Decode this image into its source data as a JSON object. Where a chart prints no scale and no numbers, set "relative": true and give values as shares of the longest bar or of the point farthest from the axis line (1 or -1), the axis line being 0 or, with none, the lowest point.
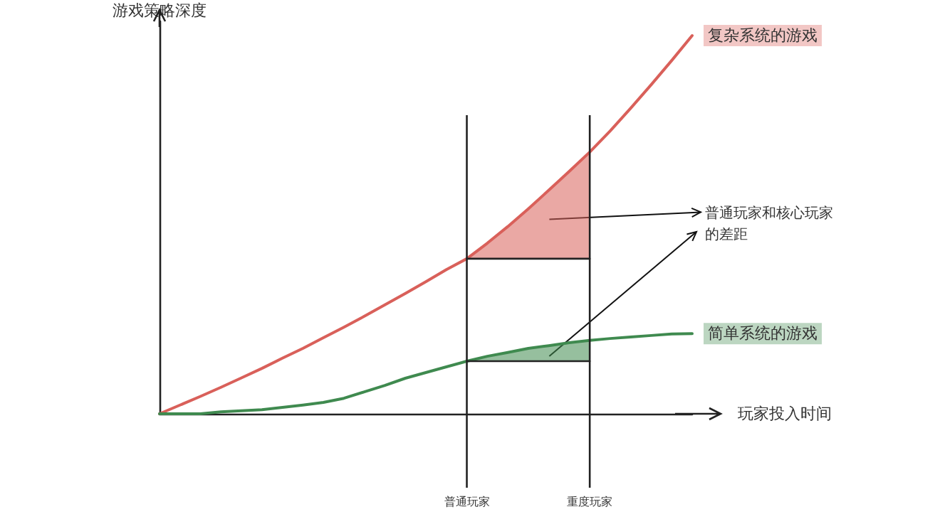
{
  "chart_data": {
    "type": "line",
    "relative": true,
    "xlabel": "玩家投入时间",
    "ylabel": "游戏策略深度",
    "categories": [
      null,
      null,
      null,
      null,
      null,
      null,
      null,
      null,
      null,
      null,
      null,
      null,
      null,
      null,
      null,
      "普通玩家",
      null,
      null,
      null,
      null,
      null,
      "重度玩家",
      null,
      null,
      null,
      null,
      null
    ],
    "series": [
      {
        "name": "复杂系统的游戏",
        "color": "#d9605a",
        "values": [
          0,
          0.023,
          0.046,
          0.07,
          0.095,
          0.12,
          0.147,
          0.173,
          0.201,
          0.229,
          0.258,
          0.288,
          0.318,
          0.349,
          0.381,
          0.41,
          0.451,
          0.495,
          0.542,
          0.591,
          0.641,
          0.692,
          0.748,
          0.808,
          0.87,
          0.934,
          1
        ],
        "lower": [
          null,
          null,
          null,
          null,
          null,
          null,
          null,
          null,
          null,
          null,
          null,
          null,
          null,
          null,
          null,
          0.41,
          0.41,
          0.41,
          0.41,
          0.41,
          0.41,
          0.41,
          null,
          null,
          null,
          null,
          null
        ],
        "upper": [
          null,
          null,
          null,
          null,
          null,
          null,
          null,
          null,
          null,
          null,
          null,
          null,
          null,
          null,
          null,
          0.41,
          0.451,
          0.495,
          0.542,
          0.591,
          0.641,
          0.692,
          null,
          null,
          null,
          null,
          null
        ]
      },
      {
        "name": "简单系统的游戏",
        "color": "#3f8a4f",
        "values": [
          0,
          0,
          0,
          0.005,
          0.008,
          0.011,
          0.017,
          0.023,
          0.03,
          0.041,
          0.058,
          0.075,
          0.094,
          0.109,
          0.124,
          0.139,
          0.152,
          0.162,
          0.173,
          0.18,
          0.188,
          0.194,
          0.199,
          0.203,
          0.207,
          0.211,
          0.212
        ],
        "lower": [
          null,
          null,
          null,
          null,
          null,
          null,
          null,
          null,
          null,
          null,
          null,
          null,
          null,
          null,
          null,
          0.139,
          0.139,
          0.139,
          0.139,
          0.139,
          0.139,
          0.139,
          null,
          null,
          null,
          null,
          null
        ],
        "upper": [
          null,
          null,
          null,
          null,
          null,
          null,
          null,
          null,
          null,
          null,
          null,
          null,
          null,
          null,
          null,
          0.139,
          0.152,
          0.162,
          0.173,
          0.18,
          0.188,
          0.194,
          null,
          null,
          null,
          null,
          null
        ]
      },
      {
        "color": "#222222",
        "values": [
          null,
          null,
          null,
          null,
          null,
          null,
          null,
          null,
          null,
          null,
          null,
          null,
          null,
          null,
          null,
          0.41,
          0.41,
          0.41,
          0.41,
          0.41,
          0.41,
          0.41,
          null,
          null,
          null,
          null,
          null
        ]
      },
      {
        "color": "#222222",
        "values": [
          null,
          null,
          null,
          null,
          null,
          null,
          null,
          null,
          null,
          null,
          null,
          null,
          null,
          null,
          null,
          0.139,
          0.139,
          0.139,
          0.139,
          0.139,
          0.139,
          0.139,
          null,
          null,
          null,
          null,
          null
        ]
      }
    ],
    "ref_lines": [
      {
        "axis": "x",
        "value": "普通玩家",
        "color": "#222222"
      },
      {
        "axis": "x",
        "value": "重度玩家",
        "color": "#222222"
      }
    ],
    "annotations": [
      "普通玩家和核心玩家的差距"
    ],
    "grid": false,
    "legend": false,
    "marker": "none",
    "line_style": "solid"
  }
}
